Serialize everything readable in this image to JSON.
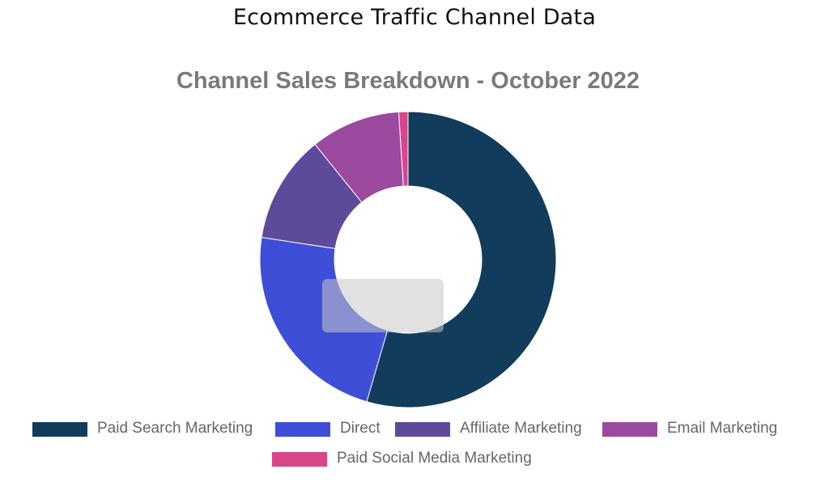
{
  "page": {
    "title": "Ecommerce Traffic Channel Data"
  },
  "chart_data": {
    "type": "pie",
    "variant": "doughnut",
    "title": "Channel Sales Breakdown - October 2022",
    "legend_position": "bottom",
    "categories": [
      "Paid Search Marketing",
      "Direct",
      "Affiliate Marketing",
      "Email Marketing",
      "Paid Social Media Marketing"
    ],
    "values": [
      54.5,
      22.9,
      11.8,
      9.8,
      1.0
    ],
    "colors": [
      "#123c5c",
      "#3f4ed6",
      "#5e4a9b",
      "#9b4a9f",
      "#d9468a"
    ],
    "tooltip_visible": true
  }
}
